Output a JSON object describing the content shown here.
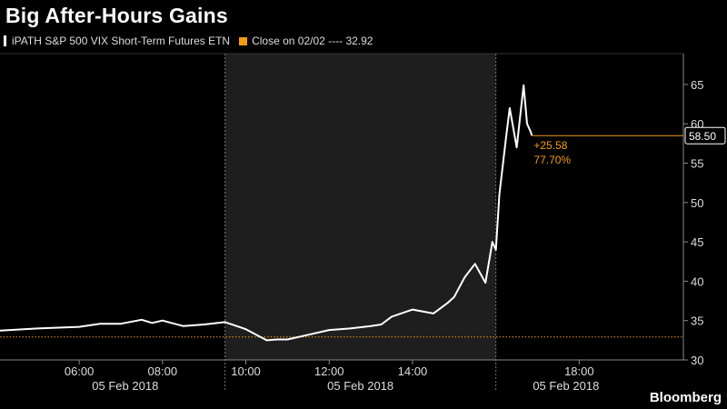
{
  "chart_data": {
    "type": "line",
    "title": "Big After-Hours Gains",
    "series": [
      {
        "name": "iPATH S&P 500 VIX Short-Term Futures ETN",
        "color": "#ffffff",
        "x": [
          "04:00",
          "05:00",
          "06:00",
          "06:30",
          "07:00",
          "07:30",
          "07:45",
          "08:00",
          "08:30",
          "09:00",
          "09:30",
          "10:00",
          "10:30",
          "10:45",
          "11:00",
          "11:30",
          "12:00",
          "12:30",
          "13:00",
          "13:15",
          "13:30",
          "14:00",
          "14:30",
          "14:50",
          "15:00",
          "15:15",
          "15:30",
          "15:45",
          "15:55",
          "16:00",
          "16:05",
          "16:15",
          "16:20",
          "16:30",
          "16:40",
          "16:45",
          "16:50",
          "16:52"
        ],
        "y": [
          33.7,
          34.0,
          34.2,
          34.6,
          34.6,
          35.1,
          34.7,
          35.0,
          34.3,
          34.5,
          34.8,
          33.9,
          32.5,
          32.6,
          32.6,
          33.2,
          33.8,
          34.0,
          34.3,
          34.5,
          35.5,
          36.4,
          35.9,
          37.2,
          38.0,
          40.5,
          42.2,
          39.8,
          45.0,
          44.0,
          51.0,
          58.5,
          62.0,
          57.0,
          64.9,
          60.0,
          59.0,
          58.5
        ]
      },
      {
        "name": "Close on 02/02",
        "color": "#f39c12",
        "value": 32.92
      }
    ],
    "legend": [
      "iPATH S&P 500 VIX Short-Term Futures ETN",
      "Close on 02/02 ---- 32.92"
    ],
    "ylim": [
      30,
      65
    ],
    "yticks": [
      30,
      35,
      40,
      45,
      50,
      55,
      60,
      65
    ],
    "xticks": [
      "06:00",
      "08:00",
      "10:00",
      "12:00",
      "14:00",
      "18:00"
    ],
    "date_labels": [
      "05 Feb 2018",
      "05 Feb 2018",
      "05 Feb 2018"
    ],
    "shaded_session": [
      "09:30",
      "16:00"
    ],
    "last_value": "58.50",
    "change_abs": "+25.58",
    "change_pct": "77.70%",
    "grid": false
  },
  "brand": "Bloomberg"
}
